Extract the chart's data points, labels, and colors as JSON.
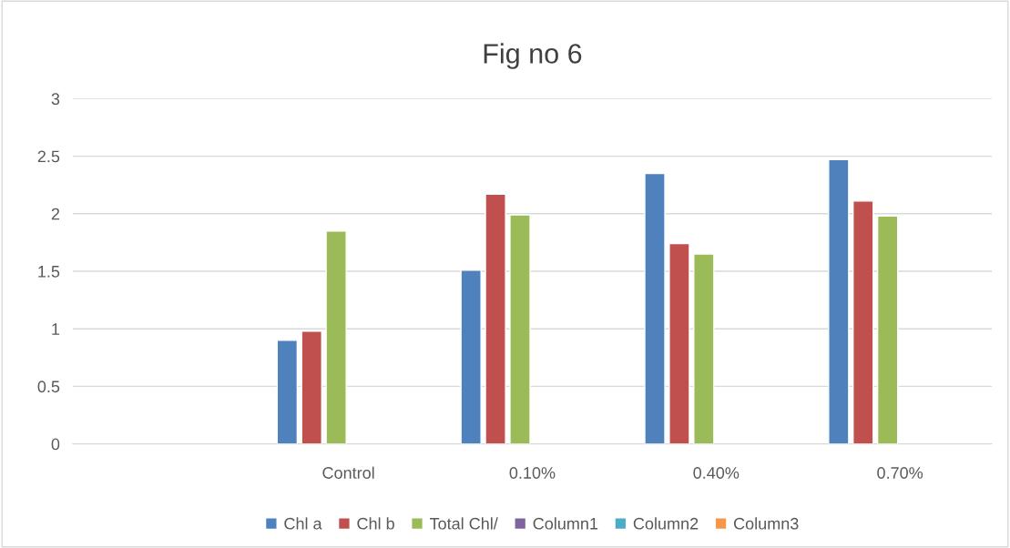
{
  "chart_data": {
    "type": "bar",
    "title": "Fig no 6",
    "categories": [
      null,
      "Control",
      "0.10%",
      "0.40%",
      "0.70%"
    ],
    "series": [
      {
        "name": "Chl a",
        "color": "#4f81bd",
        "values": [
          null,
          0.9,
          1.51,
          2.35,
          2.47
        ]
      },
      {
        "name": "Chl b",
        "color": "#c0504d",
        "values": [
          null,
          0.98,
          2.17,
          1.74,
          2.11
        ]
      },
      {
        "name": "Total Chl/",
        "color": "#9bbb59",
        "values": [
          null,
          1.85,
          1.99,
          1.65,
          1.98
        ]
      },
      {
        "name": "Column1",
        "color": "#8064a2",
        "values": [
          null,
          null,
          null,
          null,
          null
        ]
      },
      {
        "name": "Column2",
        "color": "#4bacc6",
        "values": [
          null,
          null,
          null,
          null,
          null
        ]
      },
      {
        "name": "Column3",
        "color": "#f79646",
        "values": [
          null,
          null,
          null,
          null,
          null
        ]
      }
    ],
    "ylim": [
      0,
      3
    ],
    "yticks": [
      0,
      0.5,
      1,
      1.5,
      2,
      2.5,
      3
    ],
    "grid": "y",
    "legend": "bottom"
  }
}
